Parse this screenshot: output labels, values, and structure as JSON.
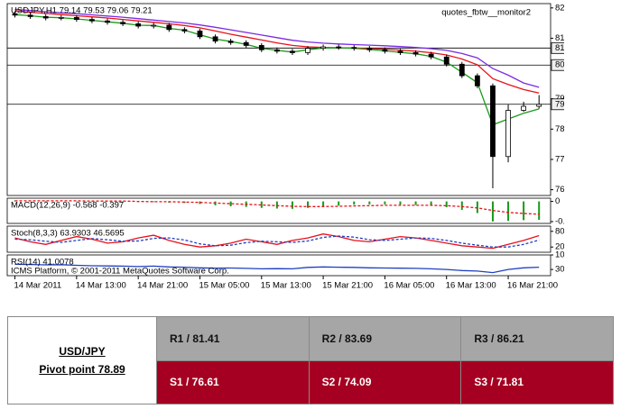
{
  "chart_data": [
    {
      "type": "candlestick",
      "title": "USDJPY,H1  79.14 79.53 79.06 79.21",
      "annotation": "quotes_fbtw__monitor2",
      "x": [
        0,
        2,
        4,
        6,
        8,
        10,
        12,
        14,
        16,
        18,
        20,
        22,
        24,
        26,
        28,
        30,
        32,
        34,
        36,
        38,
        40,
        42,
        44,
        46,
        48,
        50,
        52,
        54,
        56,
        58,
        60,
        62,
        64,
        66,
        68
      ],
      "open": [
        82.35,
        82.3,
        82.25,
        82.2,
        82.22,
        82.15,
        82.1,
        82.05,
        82.0,
        81.92,
        81.95,
        81.8,
        81.75,
        81.55,
        81.4,
        81.35,
        81.25,
        81.1,
        81.05,
        81.0,
        81.15,
        81.2,
        81.18,
        81.15,
        81.1,
        81.05,
        81.0,
        80.95,
        80.85,
        80.6,
        80.2,
        79.85,
        77.4,
        79.0,
        79.14
      ],
      "high": [
        82.43,
        82.38,
        82.33,
        82.3,
        82.3,
        82.23,
        82.18,
        82.13,
        82.08,
        82.03,
        82.03,
        81.88,
        81.83,
        81.63,
        81.48,
        81.43,
        81.33,
        81.18,
        81.13,
        81.23,
        81.28,
        81.28,
        81.26,
        81.23,
        81.18,
        81.13,
        81.08,
        81.03,
        80.93,
        80.68,
        80.28,
        79.93,
        79.2,
        79.3,
        79.53
      ],
      "low": [
        82.22,
        82.17,
        82.12,
        82.12,
        82.07,
        82.02,
        81.97,
        81.92,
        81.84,
        81.84,
        81.72,
        81.67,
        81.47,
        81.32,
        81.27,
        81.17,
        81.02,
        80.97,
        80.92,
        80.92,
        81.07,
        81.1,
        81.07,
        81.02,
        80.97,
        80.92,
        80.87,
        80.77,
        80.52,
        80.12,
        79.77,
        76.3,
        77.2,
        78.95,
        79.06
      ],
      "close": [
        82.3,
        82.25,
        82.2,
        82.22,
        82.15,
        82.1,
        82.05,
        82.0,
        81.92,
        81.95,
        81.8,
        81.75,
        81.55,
        81.4,
        81.35,
        81.25,
        81.1,
        81.05,
        81.0,
        81.15,
        81.2,
        81.18,
        81.15,
        81.1,
        81.05,
        81.0,
        80.95,
        80.85,
        80.6,
        80.2,
        79.85,
        77.4,
        79.0,
        79.14,
        79.21
      ],
      "series": [
        {
          "color": "#7a2be2",
          "values": [
            82.5,
            82.46,
            82.42,
            82.38,
            82.35,
            82.31,
            82.27,
            82.23,
            82.18,
            82.13,
            82.08,
            82.03,
            81.96,
            81.88,
            81.79,
            81.7,
            81.61,
            81.52,
            81.43,
            81.37,
            81.33,
            81.3,
            81.28,
            81.26,
            81.24,
            81.21,
            81.18,
            81.14,
            81.08,
            80.97,
            80.82,
            80.45,
            80.22,
            79.95,
            79.8
          ]
        },
        {
          "color": "#e8101a",
          "values": [
            82.45,
            82.4,
            82.36,
            82.32,
            82.28,
            82.24,
            82.2,
            82.15,
            82.1,
            82.05,
            82.0,
            81.94,
            81.86,
            81.75,
            81.64,
            81.54,
            81.44,
            81.34,
            81.25,
            81.2,
            81.18,
            81.17,
            81.16,
            81.14,
            81.12,
            81.09,
            81.05,
            81.0,
            80.92,
            80.78,
            80.58,
            80.1,
            79.9,
            79.72,
            79.6
          ]
        },
        {
          "color": "#1a9a1a",
          "values": [
            82.32,
            82.28,
            82.23,
            82.21,
            82.17,
            82.12,
            82.07,
            82.02,
            81.95,
            81.94,
            81.84,
            81.78,
            81.62,
            81.47,
            81.39,
            81.29,
            81.15,
            81.08,
            81.02,
            81.1,
            81.16,
            81.17,
            81.15,
            81.11,
            81.06,
            81.01,
            80.96,
            80.87,
            80.67,
            80.32,
            79.96,
            78.5,
            78.7,
            78.9,
            79.05
          ]
        }
      ],
      "levels": [
        81.16,
        80.57,
        79.21
      ],
      "xlim": [
        -1,
        69.5
      ],
      "xticks": [
        {
          "value": 0,
          "label": "14 Mar 2011"
        },
        {
          "value": 8,
          "label": "14 Mar 13:00"
        },
        {
          "value": 16,
          "label": "14 Mar 21:00"
        },
        {
          "value": 24,
          "label": "15 Mar 05:00"
        },
        {
          "value": 32,
          "label": "15 Mar 13:00"
        },
        {
          "value": 40,
          "label": "15 Mar 21:00"
        },
        {
          "value": 48,
          "label": "16 Mar 05:00"
        },
        {
          "value": 56,
          "label": "16 Mar 13:00"
        },
        {
          "value": 64,
          "label": "16 Mar 21:00"
        }
      ],
      "ylim": [
        76.05,
        82.7
      ],
      "yticks": [
        82.55,
        {
          "value": 81.5,
          "label": "81.50"
        },
        {
          "value": 79.4,
          "label": "79.40"
        },
        78.35,
        {
          "value": 77.3,
          "label": "77.30"
        },
        76.25
      ]
    },
    {
      "type": "bar",
      "title": "MACD(12,26,9) -0.568 -0.397",
      "color": "#1a9a1a",
      "values": [
        0.03,
        0.03,
        0.02,
        0.02,
        0.01,
        0.01,
        0.0,
        -0.01,
        -0.02,
        -0.02,
        -0.04,
        -0.05,
        -0.08,
        -0.12,
        -0.15,
        -0.17,
        -0.2,
        -0.22,
        -0.23,
        -0.2,
        -0.16,
        -0.13,
        -0.1,
        -0.09,
        -0.09,
        -0.1,
        -0.11,
        -0.13,
        -0.18,
        -0.26,
        -0.36,
        -0.62,
        -0.6,
        -0.58,
        -0.568
      ],
      "series": [
        {
          "color": "#e8101a",
          "dash": true,
          "values": [
            0.02,
            0.02,
            0.02,
            0.02,
            0.02,
            0.01,
            0.01,
            0.01,
            0.0,
            -0.01,
            -0.01,
            -0.02,
            -0.03,
            -0.05,
            -0.07,
            -0.09,
            -0.11,
            -0.13,
            -0.15,
            -0.16,
            -0.16,
            -0.15,
            -0.14,
            -0.13,
            -0.12,
            -0.12,
            -0.12,
            -0.12,
            -0.13,
            -0.16,
            -0.2,
            -0.28,
            -0.34,
            -0.37,
            -0.397
          ]
        }
      ],
      "ylim": [
        -0.68,
        0.1
      ],
      "yticks": [
        0,
        -0.623
      ]
    },
    {
      "type": "line",
      "title": "Stoch(8,3,3) 63.9303 46.5695",
      "series": [
        {
          "color": "#e8101a",
          "values": [
            55,
            40,
            30,
            45,
            60,
            50,
            35,
            40,
            55,
            65,
            45,
            30,
            20,
            25,
            35,
            50,
            40,
            30,
            45,
            55,
            70,
            60,
            45,
            40,
            50,
            60,
            55,
            45,
            35,
            25,
            20,
            15,
            30,
            45,
            63.9303
          ]
        },
        {
          "color": "#2040c0",
          "dash": true,
          "values": [
            50,
            48,
            42,
            38,
            45,
            52,
            48,
            42,
            43,
            53,
            55,
            47,
            32,
            25,
            27,
            37,
            42,
            40,
            38,
            43,
            57,
            62,
            58,
            48,
            45,
            50,
            55,
            53,
            45,
            35,
            27,
            20,
            20,
            30,
            46.5695
          ]
        }
      ],
      "ylim": [
        0,
        100
      ],
      "yticks": [
        80,
        20
      ]
    },
    {
      "type": "line",
      "title": "RSI(14) 41.0078",
      "annotation": "ICMS Platform, © 2001-2011 MetaQuotes Software Corp.",
      "series": [
        {
          "color": "#2040c0",
          "values": [
            55,
            54,
            52,
            53,
            50,
            48,
            47,
            46,
            44,
            46,
            42,
            41,
            38,
            36,
            37,
            35,
            33,
            34,
            33,
            40,
            42,
            41,
            40,
            38,
            37,
            36,
            35,
            33,
            30,
            25,
            22,
            15,
            30,
            38,
            41.0078
          ]
        }
      ],
      "ylim": [
        0,
        100
      ],
      "yticks": [
        100,
        30
      ]
    }
  ],
  "table": {
    "pair": "USD/JPY",
    "pivot": "Pivot point 78.89",
    "resistance": [
      "R1 / 81.41",
      "R2 / 83.69",
      "R3 / 86.21"
    ],
    "support": [
      "S1 / 76.61",
      "S2 / 74.09",
      "S3 / 71.81"
    ]
  }
}
